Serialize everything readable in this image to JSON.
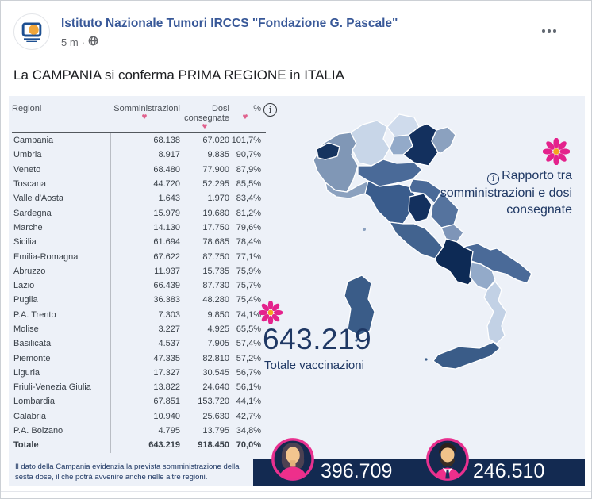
{
  "post": {
    "author": "Istituto Nazionale Tumori IRCCS \"Fondazione G. Pascale\"",
    "timestamp": "5 m",
    "meta_separator": "·",
    "text": "La CAMPANIA si conferma PRIMA REGIONE in ITALIA"
  },
  "table": {
    "headers": [
      "Regioni",
      "Somministrazioni",
      "Dosi consegnate",
      "%"
    ],
    "rows": [
      {
        "region": "Campania",
        "somministrazioni": "68.138",
        "dosi": "67.020",
        "pct": "101,7%"
      },
      {
        "region": "Umbria",
        "somministrazioni": "8.917",
        "dosi": "9.835",
        "pct": "90,7%"
      },
      {
        "region": "Veneto",
        "somministrazioni": "68.480",
        "dosi": "77.900",
        "pct": "87,9%"
      },
      {
        "region": "Toscana",
        "somministrazioni": "44.720",
        "dosi": "52.295",
        "pct": "85,5%"
      },
      {
        "region": "Valle d'Aosta",
        "somministrazioni": "1.643",
        "dosi": "1.970",
        "pct": "83,4%"
      },
      {
        "region": "Sardegna",
        "somministrazioni": "15.979",
        "dosi": "19.680",
        "pct": "81,2%"
      },
      {
        "region": "Marche",
        "somministrazioni": "14.130",
        "dosi": "17.750",
        "pct": "79,6%"
      },
      {
        "region": "Sicilia",
        "somministrazioni": "61.694",
        "dosi": "78.685",
        "pct": "78,4%"
      },
      {
        "region": "Emilia-Romagna",
        "somministrazioni": "67.622",
        "dosi": "87.750",
        "pct": "77,1%"
      },
      {
        "region": "Abruzzo",
        "somministrazioni": "11.937",
        "dosi": "15.735",
        "pct": "75,9%"
      },
      {
        "region": "Lazio",
        "somministrazioni": "66.439",
        "dosi": "87.730",
        "pct": "75,7%"
      },
      {
        "region": "Puglia",
        "somministrazioni": "36.383",
        "dosi": "48.280",
        "pct": "75,4%"
      },
      {
        "region": "P.A. Trento",
        "somministrazioni": "7.303",
        "dosi": "9.850",
        "pct": "74,1%"
      },
      {
        "region": "Molise",
        "somministrazioni": "3.227",
        "dosi": "4.925",
        "pct": "65,5%"
      },
      {
        "region": "Basilicata",
        "somministrazioni": "4.537",
        "dosi": "7.905",
        "pct": "57,4%"
      },
      {
        "region": "Piemonte",
        "somministrazioni": "47.335",
        "dosi": "82.810",
        "pct": "57,2%"
      },
      {
        "region": "Liguria",
        "somministrazioni": "17.327",
        "dosi": "30.545",
        "pct": "56,7%"
      },
      {
        "region": "Friuli-Venezia Giulia",
        "somministrazioni": "13.822",
        "dosi": "24.640",
        "pct": "56,1%"
      },
      {
        "region": "Lombardia",
        "somministrazioni": "67.851",
        "dosi": "153.720",
        "pct": "44,1%"
      },
      {
        "region": "Calabria",
        "somministrazioni": "10.940",
        "dosi": "25.630",
        "pct": "42,7%"
      },
      {
        "region": "P.A. Bolzano",
        "somministrazioni": "4.795",
        "dosi": "13.795",
        "pct": "34,8%"
      },
      {
        "region": "Totale",
        "somministrazioni": "643.219",
        "dosi": "918.450",
        "pct": "70,0%",
        "bold": true
      }
    ]
  },
  "infographic": {
    "ratio_note": "Rapporto tra somministrazioni e dosi consegnate",
    "total_number": "643.219",
    "total_label": "Totale vaccinazioni",
    "footnote": "Il dato della Campania evidenzia la prevista somministrazione della sesta dose, il che potrà avvenire anche nelle altre regioni.",
    "female_count": "396.709",
    "male_count": "246.510",
    "colors": {
      "bar_background": "#132a51",
      "accent_pink": "#e8308f",
      "navy_text": "#1f3864",
      "flower_pink": "#e4228c",
      "flower_center": "#f6a51d"
    }
  },
  "map": {
    "regions": [
      {
        "id": "piemonte",
        "fill": "#8097b6"
      },
      {
        "id": "valle_daosta",
        "fill": "#16345f"
      },
      {
        "id": "lombardia",
        "fill": "#c8d6e8"
      },
      {
        "id": "pa_bolzano",
        "fill": "#cfdbec"
      },
      {
        "id": "pa_trento",
        "fill": "#93aac9"
      },
      {
        "id": "veneto",
        "fill": "#13305e"
      },
      {
        "id": "friuli",
        "fill": "#8ba1bf"
      },
      {
        "id": "liguria",
        "fill": "#8ba1bf"
      },
      {
        "id": "emilia_romagna",
        "fill": "#4a6a98"
      },
      {
        "id": "toscana",
        "fill": "#3a5c8c"
      },
      {
        "id": "marche",
        "fill": "#4a6a98"
      },
      {
        "id": "umbria",
        "fill": "#13305e"
      },
      {
        "id": "lazio",
        "fill": "#42638f"
      },
      {
        "id": "abruzzo",
        "fill": "#55739e"
      },
      {
        "id": "molise",
        "fill": "#7e95b8"
      },
      {
        "id": "campania",
        "fill": "#0d2a55"
      },
      {
        "id": "puglia",
        "fill": "#4a6a98"
      },
      {
        "id": "basilicata",
        "fill": "#93aac9"
      },
      {
        "id": "calabria",
        "fill": "#c2d1e5"
      },
      {
        "id": "sicilia",
        "fill": "#3a5c88"
      },
      {
        "id": "sardegna",
        "fill": "#3a5c88"
      }
    ]
  }
}
